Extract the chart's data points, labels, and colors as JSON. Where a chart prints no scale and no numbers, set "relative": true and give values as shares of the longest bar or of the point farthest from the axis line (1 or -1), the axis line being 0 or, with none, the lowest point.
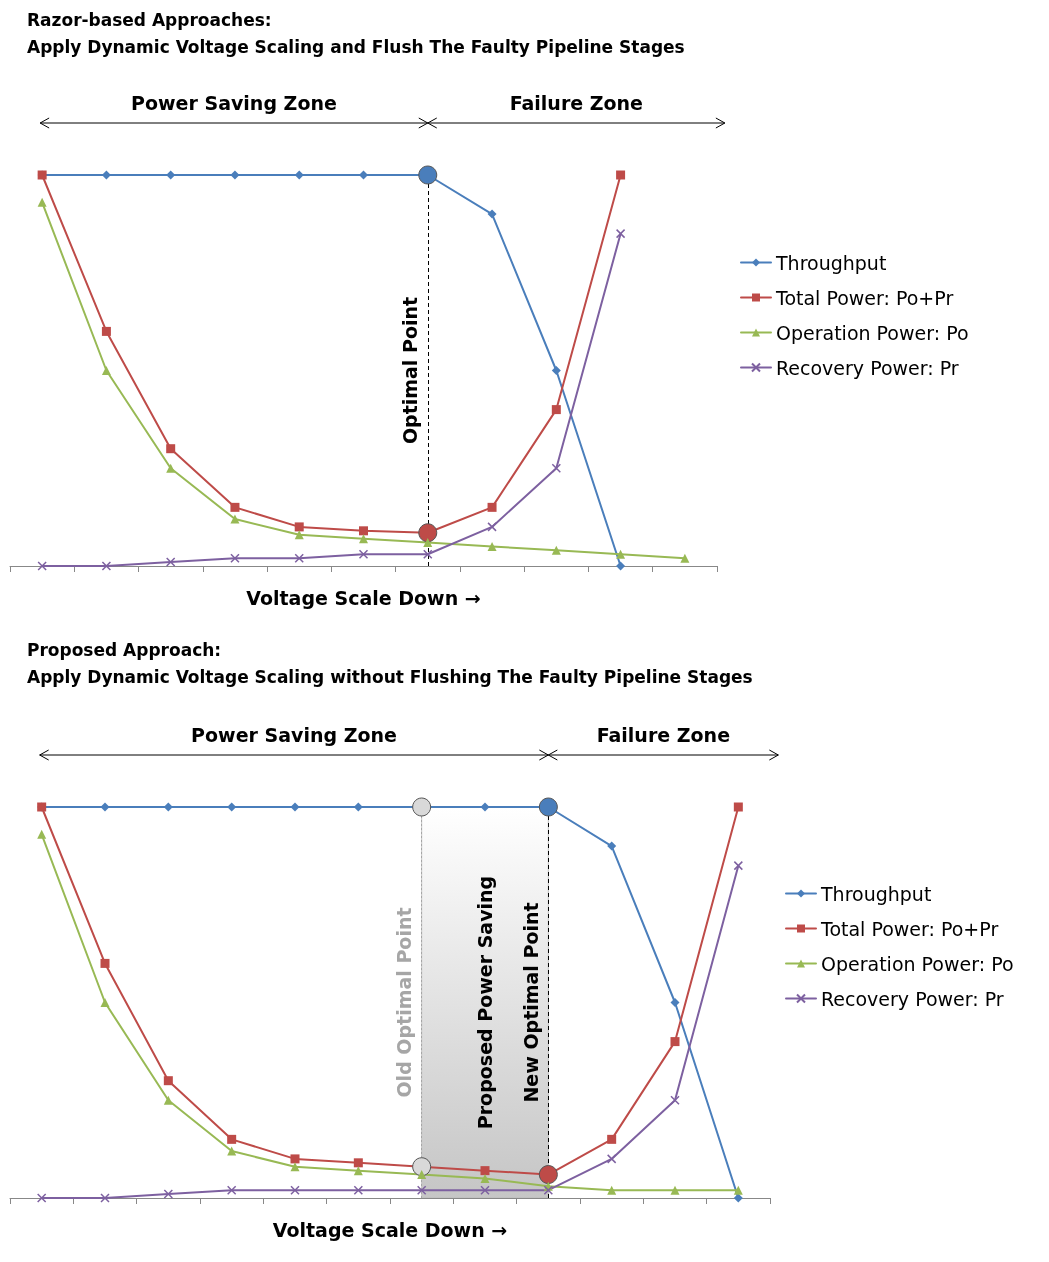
{
  "chart_data": [
    {
      "type": "line",
      "title": "Razor-based Approaches:",
      "subtitle": "Apply Dynamic Voltage Scaling and Flush The Faulty Pipeline Stages",
      "xlabel": "Voltage Scale Down →",
      "relative": true,
      "legend": "right",
      "categories": [
        null,
        null,
        null,
        null,
        null,
        null,
        null,
        null,
        null,
        null,
        null
      ],
      "series": [
        {
          "name": "Throughput",
          "color": "#4a7ebb",
          "marker": "diamond",
          "values": [
            1,
            1,
            1,
            1,
            1,
            1,
            1,
            0.9,
            0.5,
            0,
            null
          ]
        },
        {
          "name": "Total Power: Po+Pr",
          "color": "#be4b48",
          "marker": "square",
          "values": [
            1,
            0.6,
            0.3,
            0.15,
            0.1,
            0.09,
            0.085,
            0.15,
            0.4,
            1,
            null
          ]
        },
        {
          "name": "Operation Power: Po",
          "color": "#98b954",
          "marker": "triangle",
          "values": [
            0.93,
            0.5,
            0.25,
            0.12,
            0.08,
            0.07,
            0.06,
            0.05,
            0.04,
            0.03,
            0.02
          ]
        },
        {
          "name": "Recovery Power: Pr",
          "color": "#7d60a0",
          "marker": "cross",
          "values": [
            0,
            0,
            0.01,
            0.02,
            0.02,
            0.03,
            0.03,
            0.1,
            0.25,
            0.85,
            null
          ]
        }
      ],
      "annotations": [
        "Power Saving Zone",
        "Failure Zone",
        "Optimal Point"
      ]
    },
    {
      "type": "line",
      "title": "Proposed Approach:",
      "subtitle": "Apply Dynamic Voltage Scaling without Flushing The Faulty Pipeline Stages",
      "xlabel": "Voltage Scale Down →",
      "relative": true,
      "legend": "right",
      "categories": [
        null,
        null,
        null,
        null,
        null,
        null,
        null,
        null,
        null,
        null,
        null,
        null
      ],
      "series": [
        {
          "name": "Throughput",
          "color": "#4a7ebb",
          "marker": "diamond",
          "values": [
            1,
            1,
            1,
            1,
            1,
            1,
            1,
            1,
            1,
            0.9,
            0.5,
            0
          ]
        },
        {
          "name": "Total Power: Po+Pr",
          "color": "#be4b48",
          "marker": "square",
          "values": [
            1,
            0.6,
            0.3,
            0.15,
            0.1,
            0.09,
            0.08,
            0.07,
            0.06,
            0.15,
            0.4,
            1
          ]
        },
        {
          "name": "Operation Power: Po",
          "color": "#98b954",
          "marker": "triangle",
          "values": [
            0.93,
            0.5,
            0.25,
            0.12,
            0.08,
            0.07,
            0.06,
            0.05,
            0.03,
            0.02,
            0.02,
            0.02
          ]
        },
        {
          "name": "Recovery Power: Pr",
          "color": "#7d60a0",
          "marker": "cross",
          "values": [
            0,
            0,
            0.01,
            0.02,
            0.02,
            0.02,
            0.02,
            0.02,
            0.02,
            0.1,
            0.25,
            0.85
          ]
        }
      ],
      "annotations": [
        "Power Saving Zone",
        "Failure Zone",
        "Old Optimal Point",
        "Proposed Power Saving",
        "New Optimal Point"
      ]
    }
  ]
}
